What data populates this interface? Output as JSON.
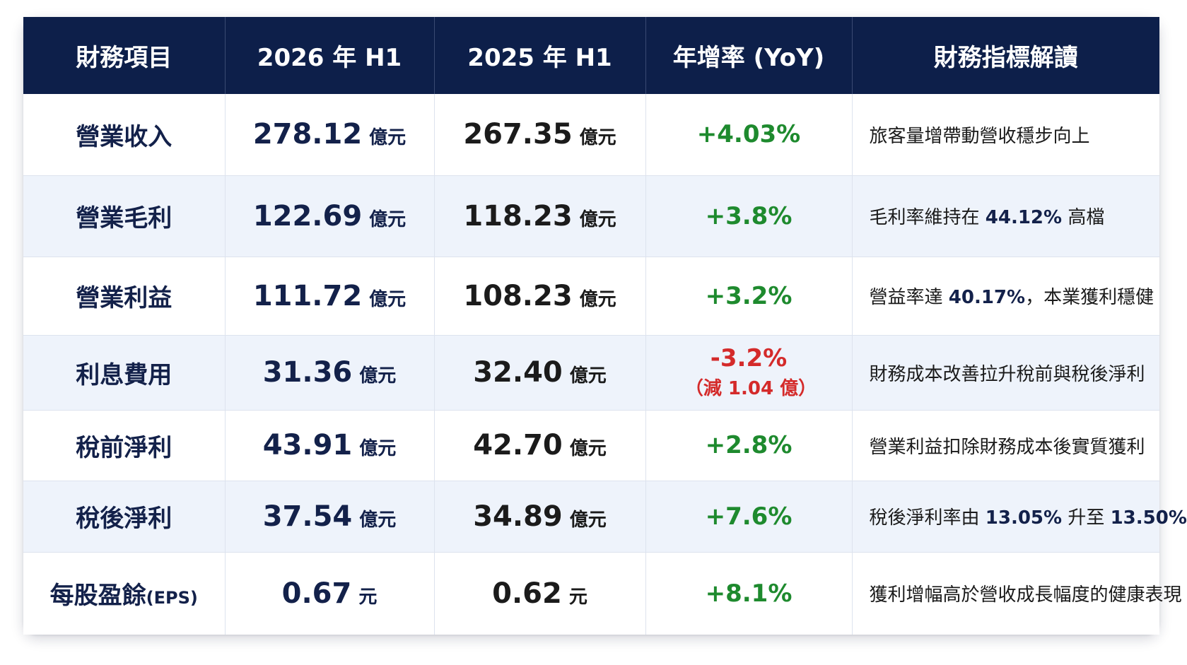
{
  "table": {
    "headers": [
      "財務項目",
      "2026 年 H1",
      "2025 年 H1",
      "年增率 (YoY)",
      "財務指標解讀"
    ],
    "rows": [
      {
        "item": "營業收入",
        "v2026": "278.12",
        "u2026": "億元",
        "v2025": "267.35",
        "u2025": "億元",
        "yoy": "+4.03%",
        "yoy_note": "",
        "yoy_sign": "positive",
        "desc_pre": "旅客量增帶動營收穩步向上",
        "desc_hl": "",
        "desc_post": ""
      },
      {
        "item": "營業毛利",
        "v2026": "122.69",
        "u2026": "億元",
        "v2025": "118.23",
        "u2025": "億元",
        "yoy": "+3.8%",
        "yoy_note": "",
        "yoy_sign": "positive",
        "desc_pre": "毛利率維持在 ",
        "desc_hl": "44.12%",
        "desc_post": " 高檔"
      },
      {
        "item": "營業利益",
        "v2026": "111.72",
        "u2026": "億元",
        "v2025": "108.23",
        "u2025": "億元",
        "yoy": "+3.2%",
        "yoy_note": "",
        "yoy_sign": "positive",
        "desc_pre": "營益率達 ",
        "desc_hl": "40.17%",
        "desc_post": "，本業獲利穩健"
      },
      {
        "item": "利息費用",
        "v2026": "31.36",
        "u2026": "億元",
        "v2025": "32.40",
        "u2025": "億元",
        "yoy": "-3.2%",
        "yoy_note": "（減 1.04 億）",
        "yoy_sign": "negative",
        "desc_pre": "財務成本改善拉升稅前與稅後淨利",
        "desc_hl": "",
        "desc_post": ""
      },
      {
        "item": "稅前淨利",
        "v2026": "43.91",
        "u2026": "億元",
        "v2025": "42.70",
        "u2025": "億元",
        "yoy": "+2.8%",
        "yoy_note": "",
        "yoy_sign": "positive",
        "desc_pre": "營業利益扣除財務成本後實質獲利",
        "desc_hl": "",
        "desc_post": ""
      },
      {
        "item": "稅後淨利",
        "v2026": "37.54",
        "u2026": "億元",
        "v2025": "34.89",
        "u2025": "億元",
        "yoy": "+7.6%",
        "yoy_note": "",
        "yoy_sign": "positive",
        "desc_pre": "稅後淨利率由 ",
        "desc_hl": "13.05%",
        "desc_mid": " 升至 ",
        "desc_hl2": "13.50%",
        "desc_post": ""
      },
      {
        "item": "每股盈餘",
        "item_suffix": "(EPS)",
        "v2026": "0.67",
        "u2026": "元",
        "v2025": "0.62",
        "u2025": "元",
        "yoy": "+8.1%",
        "yoy_note": "",
        "yoy_sign": "positive",
        "desc_pre": "獲利增幅高於營收成長幅度的健康表現",
        "desc_hl": "",
        "desc_post": ""
      }
    ]
  },
  "colors": {
    "header_bg": "#0d1f4a",
    "positive": "#1e8a2e",
    "negative": "#d42a2a",
    "stripe": "#eef3fb"
  }
}
